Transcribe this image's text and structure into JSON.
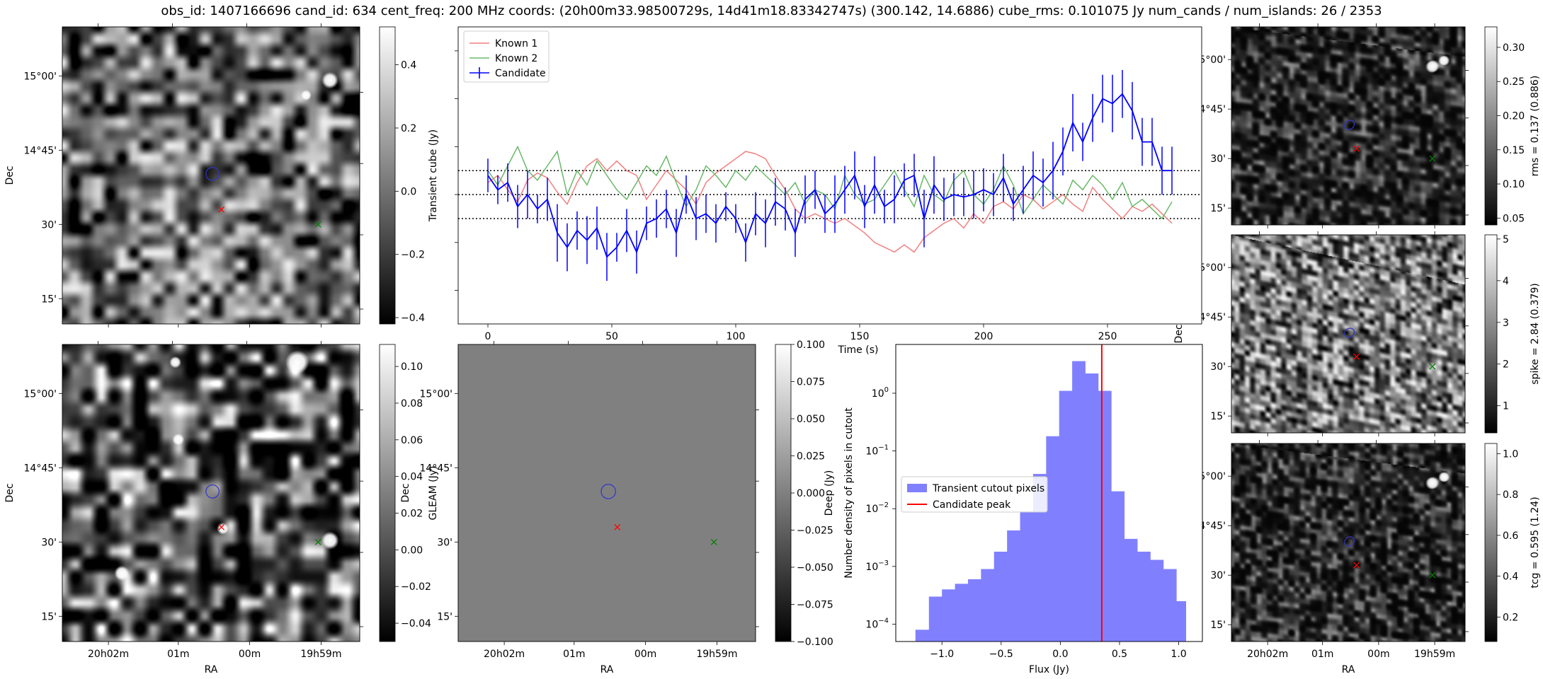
{
  "suptitle": "obs_id: 1407166696 cand_id: 634 cent_freq: 200 MHz coords: (20h00m33.98500729s, 14d41m18.83342747s) (300.142, 14.6886) cube_rms: 0.101075 Jy num_cands / num_islands: 26 / 2353",
  "colors": {
    "known1": "#f08080",
    "known2": "#6ab86a",
    "candidate": "#0000ff",
    "hist": "#8080ff",
    "peak": "#ff0000",
    "red_marker": "#ff0000",
    "green_marker": "#008000",
    "contour": "#3333cc"
  },
  "sky_axes": {
    "ra_ticks": [
      "20h02m",
      "01m",
      "00m",
      "19h59m"
    ],
    "dec_ticks": [
      "15°00'",
      "14°45'",
      "30'",
      "15'"
    ],
    "xlabel": "RA",
    "ylabel": "Dec"
  },
  "panels": {
    "transient": {
      "colorbar_label": "Transient cube (Jy)",
      "colorbar_ticks": [
        "0.4",
        "0.2",
        "0.0",
        "−0.2",
        "−0.4"
      ],
      "vmin": -0.42,
      "vmax": 0.52
    },
    "gleam": {
      "colorbar_label": "GLEAM (Jy)",
      "colorbar_ticks": [
        "0.10",
        "0.08",
        "0.06",
        "0.04",
        "0.02",
        "0.00",
        "−0.02",
        "−0.04"
      ],
      "vmin": -0.05,
      "vmax": 0.112
    },
    "deep": {
      "colorbar_label": "Deep (Jy)",
      "colorbar_ticks": [
        "0.100",
        "0.075",
        "0.050",
        "0.025",
        "0.000",
        "−0.025",
        "−0.050",
        "−0.075",
        "−0.100"
      ],
      "vmin": -0.1,
      "vmax": 0.1
    },
    "rms": {
      "colorbar_label": "rms = 0.137 (0.886)",
      "colorbar_ticks": [
        "0.30",
        "0.25",
        "0.20",
        "0.15",
        "0.10",
        "0.05"
      ],
      "vmin": 0.04,
      "vmax": 0.33
    },
    "spike": {
      "colorbar_label": "spike = 2.84 (0.379)",
      "colorbar_ticks": [
        "5",
        "4",
        "3",
        "2",
        "1"
      ],
      "vmin": 0.35,
      "vmax": 5.1
    },
    "tcg": {
      "colorbar_label": "tcg = 0.595 (1.24)",
      "colorbar_ticks": [
        "1.0",
        "0.8",
        "0.6",
        "0.4",
        "0.2"
      ],
      "vmin": 0.08,
      "vmax": 1.05
    }
  },
  "chart_data": [
    {
      "type": "line",
      "xlabel": "Time (s)",
      "x_ticks": [
        "0",
        "50",
        "100",
        "150",
        "200",
        "250"
      ],
      "xlim": [
        -12,
        288
      ],
      "ylim": [
        -0.54,
        0.7
      ],
      "hlines": [
        0.1,
        0.0,
        -0.1
      ],
      "legend": [
        "Known 1",
        "Known 2",
        "Candidate"
      ],
      "legend_position": "upper-left",
      "x": [
        0,
        4,
        8,
        12,
        16,
        20,
        24,
        28,
        32,
        36,
        40,
        44,
        48,
        52,
        56,
        60,
        64,
        68,
        72,
        76,
        80,
        84,
        88,
        92,
        96,
        100,
        104,
        108,
        112,
        116,
        120,
        124,
        128,
        132,
        136,
        140,
        144,
        148,
        152,
        156,
        160,
        164,
        168,
        172,
        176,
        180,
        184,
        188,
        192,
        196,
        200,
        204,
        208,
        212,
        216,
        220,
        224,
        228,
        232,
        236,
        240,
        244,
        248,
        252,
        256,
        260,
        264,
        268,
        272,
        276
      ],
      "series": [
        {
          "name": "Known 1",
          "values": [
            0.05,
            0.08,
            0.02,
            -0.03,
            0.06,
            0.09,
            0.07,
            0.01,
            -0.04,
            0.05,
            0.12,
            0.15,
            0.1,
            0.14,
            0.1,
            0.08,
            -0.02,
            0.04,
            0.1,
            0.06,
            0.02,
            -0.04,
            0.05,
            0.09,
            0.12,
            0.15,
            0.18,
            0.17,
            0.15,
            0.08,
            0.02,
            -0.06,
            -0.1,
            -0.08,
            -0.1,
            -0.12,
            -0.1,
            -0.13,
            -0.16,
            -0.2,
            -0.22,
            -0.24,
            -0.21,
            -0.24,
            -0.18,
            -0.15,
            -0.12,
            -0.1,
            -0.14,
            -0.08,
            -0.12,
            -0.05,
            -0.03,
            -0.06,
            0.0,
            -0.02,
            -0.06,
            -0.03,
            0.0,
            -0.04,
            -0.07,
            0.03,
            -0.02,
            -0.06,
            -0.1,
            -0.05,
            -0.07,
            -0.04,
            -0.08,
            -0.12
          ]
        },
        {
          "name": "Known 2",
          "values": [
            0.1,
            0.04,
            0.12,
            0.2,
            0.1,
            0.06,
            0.12,
            0.18,
            0.0,
            0.1,
            0.04,
            0.14,
            0.08,
            0.02,
            -0.02,
            0.05,
            0.12,
            0.08,
            0.16,
            0.05,
            -0.05,
            0.02,
            0.12,
            0.08,
            0.03,
            0.1,
            0.06,
            0.12,
            0.08,
            0.04,
            0.0,
            0.05,
            -0.04,
            0.02,
            0.0,
            -0.06,
            0.08,
            0.0,
            -0.04,
            -0.02,
            0.04,
            0.1,
            0.02,
            -0.05,
            0.08,
            0.0,
            -0.03,
            0.06,
            0.1,
            0.0,
            -0.04,
            0.02,
            0.12,
            0.04,
            -0.08,
            -0.02,
            0.04,
            0.0,
            -0.04,
            0.06,
            0.02,
            0.08,
            0.04,
            -0.02,
            0.05,
            -0.05,
            -0.02,
            -0.06,
            -0.1,
            -0.03
          ]
        },
        {
          "name": "Candidate",
          "values": [
            0.08,
            0.02,
            0.05,
            -0.05,
            0.0,
            -0.06,
            -0.02,
            -0.16,
            -0.22,
            -0.15,
            -0.19,
            -0.14,
            -0.26,
            -0.22,
            -0.15,
            -0.24,
            -0.12,
            -0.1,
            -0.06,
            -0.16,
            0.0,
            -0.1,
            -0.08,
            -0.12,
            -0.05,
            -0.1,
            -0.2,
            -0.08,
            -0.12,
            -0.03,
            -0.06,
            -0.16,
            -0.02,
            0.02,
            -0.08,
            -0.04,
            0.02,
            0.08,
            -0.05,
            0.04,
            -0.05,
            -0.02,
            0.06,
            0.08,
            -0.1,
            0.04,
            -0.02,
            0.0,
            -0.01,
            0.0,
            0.02,
            0.0,
            0.07,
            -0.04,
            0.02,
            0.08,
            0.05,
            0.1,
            0.18,
            0.3,
            0.22,
            0.32,
            0.4,
            0.38,
            0.42,
            0.35,
            0.22,
            0.22,
            0.1,
            0.1
          ]
        }
      ],
      "errors": [
        0.07,
        0.06,
        0.08,
        0.09,
        0.1,
        0.06,
        0.09,
        0.12,
        0.1,
        0.08,
        0.1,
        0.09,
        0.1,
        0.06,
        0.09,
        0.09,
        0.07,
        0.08,
        0.08,
        0.1,
        0.08,
        0.09,
        0.08,
        0.08,
        0.06,
        0.06,
        0.08,
        0.09,
        0.1,
        0.1,
        0.09,
        0.1,
        0.1,
        0.08,
        0.08,
        0.12,
        0.1,
        0.1,
        0.09,
        0.12,
        0.07,
        0.1,
        0.07,
        0.09,
        0.12,
        0.12,
        0.09,
        0.09,
        0.08,
        0.1,
        0.09,
        0.09,
        0.1,
        0.07,
        0.1,
        0.1,
        0.1,
        0.12,
        0.1,
        0.12,
        0.08,
        0.1,
        0.1,
        0.12,
        0.1,
        0.12,
        0.1,
        0.1,
        0.1,
        0.1
      ]
    },
    {
      "type": "bar",
      "xlabel": "Flux (Jy)",
      "ylabel": "Number density of pixels in cutout",
      "yscale": "log",
      "ylim": [
        5e-05,
        7
      ],
      "xlim": [
        -1.39,
        1.2
      ],
      "x_ticks": [
        "−1.0",
        "−0.5",
        "0.0",
        "0.5",
        "1.0"
      ],
      "y_ticks": [
        "10^0",
        "10^-1",
        "10^-2",
        "10^-3",
        "10^-4"
      ],
      "bin_edges": [
        -1.224,
        -1.11,
        -1.0,
        -0.89,
        -0.78,
        -0.67,
        -0.56,
        -0.45,
        -0.34,
        -0.23,
        -0.12,
        -0.01,
        0.1,
        0.21,
        0.32,
        0.43,
        0.54,
        0.65,
        0.76,
        0.87,
        0.98,
        1.06
      ],
      "values": [
        8e-05,
        0.0003,
        0.0004,
        0.0005,
        0.0006,
        0.0009,
        0.0018,
        0.0042,
        0.009,
        0.04,
        0.18,
        1.1,
        3.6,
        2.2,
        1.1,
        0.02,
        0.003,
        0.0018,
        0.0013,
        0.0009,
        0.00025
      ],
      "legend": [
        "Transient cutout pixels",
        "Candidate peak"
      ],
      "legend_position": "center-left",
      "candidate_peak": 0.35
    }
  ]
}
